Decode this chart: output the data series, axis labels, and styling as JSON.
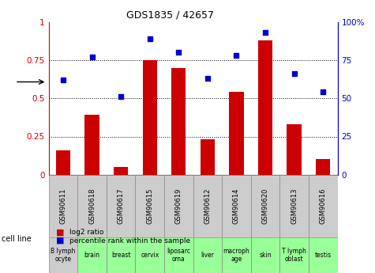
{
  "title": "GDS1835 / 42657",
  "gsm_labels": [
    "GSM90611",
    "GSM90618",
    "GSM90617",
    "GSM90615",
    "GSM90619",
    "GSM90612",
    "GSM90614",
    "GSM90620",
    "GSM90613",
    "GSM90616"
  ],
  "cell_lines": [
    "B lymph\nocyte",
    "brain",
    "breast",
    "cervix",
    "liposarc\noma",
    "liver",
    "macroph\nage",
    "skin",
    "T lymph\noblast",
    "testis"
  ],
  "cell_line_colors": [
    "#cccccc",
    "#99ff99",
    "#99ff99",
    "#99ff99",
    "#99ff99",
    "#99ff99",
    "#99ff99",
    "#99ff99",
    "#99ff99",
    "#99ff99"
  ],
  "log2_ratio": [
    0.16,
    0.39,
    0.05,
    0.75,
    0.7,
    0.23,
    0.54,
    0.88,
    0.33,
    0.1
  ],
  "percentile_rank": [
    0.62,
    0.77,
    0.51,
    0.89,
    0.8,
    0.63,
    0.78,
    0.93,
    0.66,
    0.54
  ],
  "bar_color": "#cc0000",
  "dot_color": "#0000cc",
  "ylim": [
    0,
    1.0
  ],
  "background_color": "#ffffff",
  "gsm_label_bg": "#cccccc",
  "legend_red_label": "log2 ratio",
  "legend_blue_label": "percentile rank within the sample",
  "cell_line_label": "cell line"
}
